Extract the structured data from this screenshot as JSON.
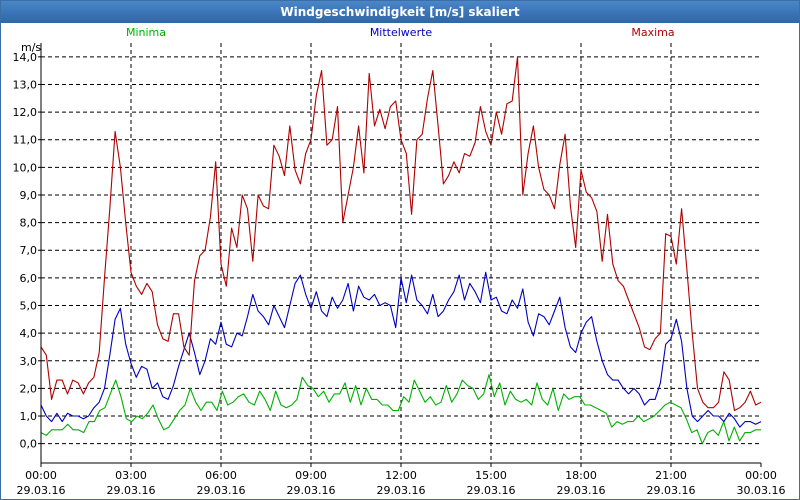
{
  "window": {
    "title": "Windgeschwindigkeit [m/s] skaliert"
  },
  "chart_data": {
    "type": "line",
    "title": "Windgeschwindigkeit [m/s] skaliert",
    "ylabel": "m/s",
    "xlabel": "",
    "ylim": [
      -0.7,
      14.5
    ],
    "xlim": [
      0,
      24
    ],
    "grid": true,
    "legend": "top",
    "y_ticks": [
      "0,0",
      "1,0",
      "2,0",
      "3,0",
      "4,0",
      "5,0",
      "6,0",
      "7,0",
      "8,0",
      "9,0",
      "10,0",
      "11,0",
      "12,0",
      "13,0",
      "14,0"
    ],
    "x_ticks": [
      {
        "time": "00:00",
        "date": "29.03.16"
      },
      {
        "time": "03:00",
        "date": "29.03.16"
      },
      {
        "time": "06:00",
        "date": "29.03.16"
      },
      {
        "time": "09:00",
        "date": "29.03.16"
      },
      {
        "time": "12:00",
        "date": "29.03.16"
      },
      {
        "time": "15:00",
        "date": "29.03.16"
      },
      {
        "time": "18:00",
        "date": "29.03.16"
      },
      {
        "time": "21:00",
        "date": "29.03.16"
      },
      {
        "time": "00:00",
        "date": "30.03.16"
      }
    ],
    "series": [
      {
        "name": "Minima",
        "color": "#00b000",
        "values": [
          0.4,
          0.3,
          0.5,
          0.5,
          0.5,
          0.7,
          0.5,
          0.5,
          0.4,
          0.8,
          0.8,
          1.2,
          1.3,
          1.8,
          2.3,
          1.7,
          0.9,
          0.8,
          1.0,
          0.9,
          1.1,
          1.4,
          0.9,
          0.5,
          0.6,
          0.9,
          1.2,
          1.4,
          2.0,
          1.5,
          1.2,
          1.5,
          1.5,
          1.2,
          1.9,
          1.4,
          1.5,
          1.7,
          1.8,
          1.5,
          1.4,
          1.9,
          1.6,
          1.2,
          1.9,
          1.4,
          1.3,
          1.4,
          1.6,
          2.4,
          2.1,
          2.0,
          1.7,
          1.9,
          1.5,
          1.8,
          1.8,
          2.2,
          1.5,
          2.1,
          1.4,
          2.0,
          1.6,
          1.6,
          1.4,
          1.4,
          1.2,
          1.2,
          1.7,
          1.5,
          2.3,
          1.9,
          1.5,
          1.7,
          1.4,
          1.5,
          2.1,
          1.5,
          1.8,
          2.3,
          2.1,
          2.0,
          1.6,
          1.8,
          2.5,
          1.7,
          2.2,
          1.4,
          1.9,
          1.6,
          1.5,
          1.6,
          1.4,
          2.2,
          1.6,
          1.4,
          2.0,
          1.2,
          1.8,
          1.6,
          1.7,
          1.7,
          1.4,
          1.4,
          1.3,
          1.2,
          1.1,
          0.6,
          0.8,
          0.7,
          0.8,
          0.8,
          1.0,
          0.8,
          0.9,
          1.0,
          1.2,
          1.4,
          1.5,
          1.4,
          1.3,
          0.9,
          0.4,
          0.5,
          0.0,
          0.4,
          0.5,
          0.3,
          0.8,
          0.1,
          0.6,
          0.1,
          0.4,
          0.4,
          0.5,
          0.5
        ]
      },
      {
        "name": "Mittelwerte",
        "color": "#0000c0",
        "values": [
          1.4,
          1.0,
          0.8,
          1.1,
          0.8,
          1.1,
          1.0,
          1.0,
          0.9,
          1.0,
          1.3,
          1.5,
          2.0,
          3.2,
          4.5,
          4.9,
          3.6,
          2.9,
          2.4,
          2.8,
          2.7,
          2.0,
          2.2,
          1.7,
          1.6,
          2.1,
          2.8,
          3.4,
          4.0,
          3.3,
          2.5,
          3.0,
          3.8,
          3.6,
          4.4,
          3.6,
          3.5,
          4.0,
          3.9,
          4.6,
          5.4,
          4.8,
          4.6,
          4.3,
          5.0,
          4.6,
          4.2,
          5.0,
          5.8,
          6.1,
          5.4,
          4.9,
          5.5,
          4.8,
          4.6,
          5.3,
          4.9,
          5.2,
          5.8,
          4.8,
          5.7,
          5.3,
          5.2,
          5.4,
          5.0,
          5.1,
          5.0,
          4.2,
          6.0,
          5.1,
          6.1,
          5.2,
          5.0,
          4.7,
          5.4,
          4.6,
          4.8,
          5.2,
          5.5,
          6.1,
          5.2,
          5.8,
          5.5,
          5.1,
          6.2,
          5.2,
          5.3,
          4.8,
          4.7,
          5.2,
          4.9,
          5.6,
          4.4,
          3.9,
          4.7,
          4.6,
          4.3,
          4.8,
          5.3,
          4.2,
          3.5,
          3.3,
          4.0,
          4.4,
          4.6,
          3.7,
          3.0,
          2.5,
          2.3,
          2.3,
          2.0,
          1.8,
          2.0,
          1.8,
          1.4,
          1.6,
          1.6,
          2.2,
          3.6,
          3.8,
          4.5,
          3.7,
          2.0,
          1.0,
          0.8,
          1.0,
          1.2,
          1.0,
          1.0,
          0.8,
          1.1,
          0.9,
          0.6,
          0.8,
          0.8,
          0.7,
          0.8
        ]
      },
      {
        "name": "Maxima",
        "color": "#b00000",
        "values": [
          3.5,
          3.2,
          1.6,
          2.3,
          2.3,
          1.8,
          2.3,
          2.2,
          1.8,
          2.2,
          2.4,
          3.3,
          6.0,
          8.5,
          11.3,
          10.0,
          8.0,
          6.2,
          5.7,
          5.4,
          5.8,
          5.5,
          4.3,
          3.8,
          3.7,
          4.7,
          4.7,
          3.5,
          3.2,
          5.9,
          6.8,
          7.0,
          8.2,
          10.2,
          6.5,
          5.7,
          7.8,
          7.1,
          9.0,
          8.5,
          6.6,
          9.0,
          8.6,
          8.5,
          10.8,
          10.4,
          9.7,
          11.5,
          9.9,
          9.4,
          10.5,
          11.0,
          12.6,
          13.5,
          10.8,
          11.0,
          12.2,
          8.0,
          9.0,
          10.0,
          11.5,
          9.8,
          13.4,
          11.5,
          12.1,
          11.4,
          12.2,
          12.4,
          11.0,
          10.5,
          8.3,
          11.0,
          11.2,
          12.5,
          13.5,
          11.5,
          9.4,
          9.7,
          10.2,
          9.8,
          10.5,
          10.4,
          10.9,
          12.2,
          11.3,
          10.8,
          12.0,
          11.2,
          12.3,
          12.4,
          14.0,
          9.0,
          10.5,
          11.5,
          10.0,
          9.2,
          9.0,
          8.5,
          10.1,
          11.2,
          8.6,
          7.1,
          9.9,
          9.1,
          8.9,
          8.4,
          6.6,
          8.3,
          6.5,
          5.9,
          5.7,
          5.2,
          4.7,
          4.2,
          3.5,
          3.4,
          3.8,
          4.0,
          7.6,
          7.5,
          6.5,
          8.5,
          6.3,
          4.0,
          2.0,
          1.5,
          1.3,
          1.3,
          1.5,
          2.6,
          2.3,
          1.2,
          1.3,
          1.5,
          1.9,
          1.4,
          1.5
        ]
      }
    ]
  }
}
